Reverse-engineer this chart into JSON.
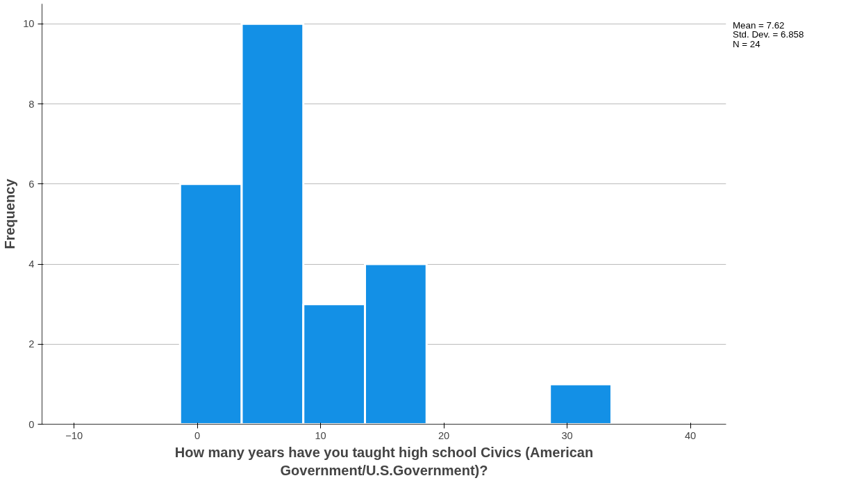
{
  "chart_data": {
    "type": "histogram",
    "xlabel": "How many years have you taught high school Civics (American Government/U.S.Government)?",
    "ylabel": "Frequency",
    "bins": [
      -1.4,
      3.6,
      8.6,
      13.6,
      18.6,
      23.6,
      28.6,
      33.6
    ],
    "values": [
      6,
      10,
      3,
      4,
      0,
      0,
      1
    ],
    "color": "#1390e6",
    "xlim": [
      -12.6,
      42.9
    ],
    "ylim": [
      0,
      10.5
    ],
    "xticks": [
      -10,
      0,
      10,
      20,
      30,
      40
    ],
    "yticks": [
      0,
      2,
      4,
      6,
      8,
      10
    ],
    "grid": "y",
    "annotations": [
      "Mean = 7.62",
      "Std. Dev. = 6.858",
      "N = 24"
    ]
  }
}
